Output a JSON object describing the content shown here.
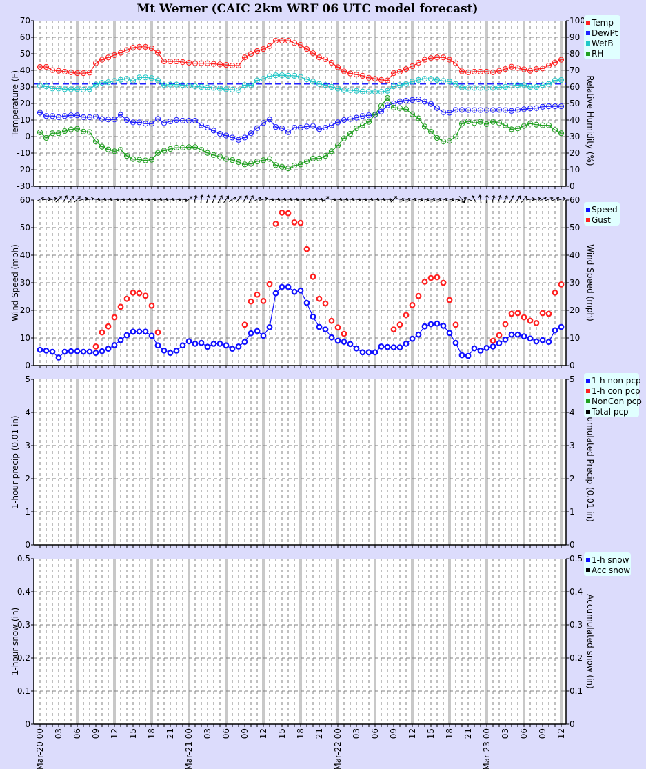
{
  "title": "Mt Werner (CAIC 2km WRF 06 UTC model forecast)",
  "x_axis": {
    "hours_start": "Mar-20 00",
    "hours_end": "Mar-23 12",
    "tick_labels": [
      "Mar-20 00",
      "03",
      "06",
      "09",
      "12",
      "15",
      "18",
      "21",
      "Mar-21 00",
      "03",
      "06",
      "09",
      "12",
      "15",
      "18",
      "21",
      "Mar-22 00",
      "03",
      "06",
      "09",
      "12",
      "15",
      "18",
      "21",
      "Mar-23 00",
      "03",
      "06",
      "09",
      "12"
    ]
  },
  "colors": {
    "background": "#dcdcfc",
    "temp": "#ff2020",
    "dewpt": "#2020ff",
    "wetb": "#20c8c8",
    "rh": "#20a020",
    "speed": "#1010ff",
    "gust": "#ff2020",
    "grid": "#808080",
    "day_line": "#c8c8c8",
    "legend_bg": "#e0ffff"
  },
  "chart_data": [
    {
      "type": "line",
      "ylabel": "Temperature (F)",
      "ylabel_right": "Relative Humidity (%)",
      "ylim": [
        -30,
        70
      ],
      "ylim_right": [
        0,
        100
      ],
      "yticks": [
        "-30",
        "-20",
        "-10",
        "0",
        "10",
        "20",
        "30",
        "40",
        "50",
        "60",
        "70"
      ],
      "yticks_right": [
        "0",
        "10",
        "20",
        "30",
        "40",
        "50",
        "60",
        "70",
        "80",
        "90",
        "100"
      ],
      "grid": true,
      "legend_position": "right-top",
      "reference_line": {
        "value": 32,
        "color": "#2020ff",
        "style": "dashed"
      },
      "x_hours": "0..84 hourly",
      "series": [
        {
          "name": "Temp",
          "axis": "left",
          "color": "#ff2020",
          "values": [
            42.1,
            42.1,
            40.1,
            39.7,
            39.2,
            38.8,
            38.3,
            38.3,
            38.6,
            44.3,
            46.4,
            47.8,
            49.2,
            50.6,
            52.3,
            53.7,
            54.2,
            54.2,
            53.3,
            50.6,
            45.4,
            45.4,
            45.4,
            45,
            44.6,
            44.3,
            44.3,
            44.3,
            43.9,
            43.6,
            43.3,
            42.9,
            42.9,
            47.8,
            49.9,
            51.7,
            52.9,
            54.7,
            57.9,
            57.9,
            57.9,
            56.5,
            55.4,
            52.9,
            50.3,
            47.8,
            46.7,
            44.6,
            41.9,
            39.4,
            38.1,
            37.4,
            36.7,
            35.5,
            34.9,
            34.2,
            33.9,
            38.3,
            39.2,
            40.8,
            42.5,
            44.6,
            46.4,
            47.4,
            47.8,
            47.8,
            46.4,
            44.3,
            39.4,
            38.8,
            39.2,
            39.2,
            39.2,
            38.8,
            39.7,
            40.8,
            42.2,
            41.4,
            40.6,
            39.7,
            40.8,
            41.1,
            42.9,
            44.7,
            46.4
          ]
        },
        {
          "name": "DewPt",
          "axis": "left",
          "color": "#2020ff",
          "values": [
            14.4,
            12.4,
            12.4,
            11.7,
            12.4,
            12.8,
            12.8,
            11.7,
            11.7,
            12,
            10.6,
            10.3,
            10.3,
            13.1,
            10,
            8.6,
            8.6,
            7.8,
            7.8,
            10.7,
            8.2,
            9.2,
            10,
            9.6,
            9.6,
            9.6,
            6.8,
            5.4,
            3.6,
            1.7,
            0.6,
            -0.6,
            -2,
            -0.6,
            2,
            5.1,
            8.2,
            10.3,
            5.8,
            5,
            2.6,
            5.4,
            5.4,
            6.1,
            6.4,
            4.5,
            5.4,
            6.8,
            8.6,
            10,
            10.6,
            11.4,
            12.4,
            12.8,
            13.1,
            15.1,
            18.9,
            20,
            21.1,
            21.7,
            22.1,
            22.5,
            21.1,
            19.7,
            17.2,
            14.7,
            14.4,
            16.1,
            16.1,
            16,
            16,
            16,
            16,
            16,
            16.1,
            16,
            15.5,
            16.1,
            16.5,
            17,
            17.2,
            18,
            18.3,
            18.3,
            18.3
          ]
        },
        {
          "name": "WetB",
          "axis": "left",
          "color": "#20c8c8",
          "values": [
            30.7,
            30.3,
            29,
            29,
            28.6,
            28.6,
            28.6,
            28.3,
            28.6,
            31.4,
            32.5,
            32.8,
            33.6,
            34.3,
            34.9,
            33.6,
            35.7,
            35.7,
            35.3,
            33.9,
            31.1,
            31.4,
            31.4,
            31.1,
            30.8,
            30.4,
            30,
            29.7,
            29.4,
            29,
            28.6,
            28.3,
            28,
            31.1,
            31,
            33.9,
            34.9,
            36.4,
            37,
            37,
            36.7,
            36.7,
            36,
            34.6,
            33.2,
            31.8,
            31.1,
            30,
            29,
            28,
            28,
            27.6,
            27.2,
            27,
            27,
            27,
            27.6,
            30.4,
            31.1,
            31.8,
            33.2,
            34.2,
            34.9,
            34.9,
            34.2,
            33.6,
            33.2,
            31.8,
            29.7,
            29.4,
            29.4,
            29.4,
            29.4,
            29.4,
            29.7,
            30,
            30.8,
            31.1,
            31.1,
            30,
            30,
            31.1,
            31.8,
            33.9,
            34.2
          ]
        },
        {
          "name": "RH",
          "axis": "right",
          "color": "#20a020",
          "values": [
            32.5,
            29.2,
            32,
            32,
            33.3,
            34.3,
            34.7,
            33,
            32.7,
            27.1,
            23.9,
            22.2,
            21.1,
            22,
            18.3,
            16.4,
            16,
            15.6,
            16,
            20.1,
            21.5,
            22.5,
            23.3,
            23.3,
            23.6,
            23.6,
            22,
            20.1,
            18.8,
            17.8,
            16.4,
            15.8,
            14.6,
            13.2,
            13.6,
            15,
            15.7,
            16.4,
            12.8,
            11.8,
            10.8,
            12.5,
            13.2,
            15,
            16.7,
            16.7,
            18.3,
            21.1,
            24.7,
            28.9,
            31.7,
            35,
            36.8,
            38.9,
            43.3,
            48.6,
            53.3,
            47.5,
            47.2,
            46.5,
            43.5,
            41,
            36.1,
            33,
            29.2,
            27.1,
            27.4,
            29.9,
            37.8,
            39.2,
            38.2,
            38.9,
            37.5,
            38.9,
            38.2,
            36.8,
            34.4,
            34.9,
            36.4,
            37.8,
            37.2,
            36.8,
            36.8,
            34,
            32
          ]
        }
      ]
    },
    {
      "type": "line",
      "ylabel": "Wind Speed (mph)",
      "ylabel_right": "Wind Speed (mph)",
      "ylim": [
        0,
        60
      ],
      "ylim_right": [
        0,
        60
      ],
      "yticks": [
        "0",
        "10",
        "20",
        "30",
        "40",
        "50",
        "60"
      ],
      "yticks_right": [
        "0",
        "10",
        "20",
        "30",
        "40",
        "50",
        "60"
      ],
      "grid": true,
      "legend_position": "right-top",
      "series": [
        {
          "name": "Speed",
          "color": "#1010ff",
          "values": [
            5.7,
            5.4,
            5,
            2.9,
            5,
            5.2,
            5.2,
            5,
            5,
            4.6,
            5.2,
            6.1,
            7.4,
            9.2,
            11,
            12.3,
            12.3,
            12.3,
            10.8,
            7.3,
            5.4,
            4.6,
            5.4,
            7.3,
            8.8,
            7.9,
            8.2,
            6.8,
            7.9,
            7.9,
            7.3,
            6.1,
            6.9,
            8.6,
            11.7,
            12.5,
            10.8,
            13.9,
            26.2,
            28.5,
            28.5,
            26.7,
            27.2,
            22.7,
            17.7,
            14,
            13.1,
            10.2,
            9,
            8.6,
            7.8,
            6.2,
            4.8,
            4.8,
            4.8,
            6.9,
            6.7,
            6.6,
            6.6,
            7.9,
            9.7,
            11.2,
            14.2,
            15,
            15.2,
            14.4,
            11.8,
            8.2,
            3.75,
            3.5,
            6.25,
            5.4,
            6.4,
            6.9,
            8.1,
            9.4,
            11.2,
            11.2,
            10.6,
            9.8,
            8.75,
            9.2,
            8.6,
            12.75,
            14
          ]
        },
        {
          "name": "Gust",
          "color": "#ff2020",
          "values": [
            null,
            null,
            null,
            null,
            null,
            null,
            null,
            null,
            null,
            6.9,
            12,
            14.2,
            17.5,
            21.3,
            24.2,
            26.4,
            26.2,
            25.3,
            21.7,
            12,
            null,
            null,
            null,
            null,
            null,
            null,
            null,
            null,
            null,
            null,
            null,
            null,
            null,
            14.8,
            23.2,
            25.7,
            23.4,
            29.5,
            51.4,
            55.4,
            55.2,
            51.9,
            51.7,
            42.2,
            32.2,
            24.2,
            22.5,
            16.2,
            13.8,
            11.5,
            null,
            null,
            null,
            null,
            null,
            null,
            null,
            13.1,
            14.8,
            18.3,
            21.9,
            25.2,
            30.4,
            31.75,
            32,
            30,
            23.75,
            14.8,
            null,
            null,
            null,
            null,
            null,
            9,
            11,
            15,
            18.75,
            19,
            17.5,
            16.25,
            15.4,
            19,
            18.75,
            26.4,
            29.4
          ]
        }
      ],
      "wind_direction_arrow_bearing_deg": [
        60,
        80,
        75,
        45,
        30,
        40,
        45,
        75,
        80,
        100,
        100,
        100,
        100,
        100,
        100,
        100,
        100,
        100,
        100,
        100,
        100,
        100,
        100,
        100,
        50,
        15,
        10,
        15,
        20,
        30,
        35,
        55,
        40,
        30,
        30,
        60,
        75,
        100,
        100,
        100,
        100,
        100,
        100,
        100,
        100,
        100,
        50,
        100,
        100,
        100,
        100,
        100,
        100,
        100,
        100,
        100,
        95,
        45,
        105,
        105,
        105,
        105,
        105,
        105,
        105,
        105,
        105,
        105,
        140,
        290,
        330,
        350,
        5,
        15,
        20,
        25,
        30,
        35,
        40,
        80,
        75,
        60,
        70,
        65,
        75
      ]
    },
    {
      "type": "bar",
      "ylabel": "1-hour precip (0.01 in)",
      "ylabel_right": "Accumulated Precip (0.01 in)",
      "ylim": [
        0,
        5
      ],
      "ylim_right": [
        0,
        5
      ],
      "yticks": [
        "0",
        "1",
        "2",
        "3",
        "4",
        "5"
      ],
      "yticks_right": [
        "0",
        "1",
        "2",
        "3",
        "4",
        "5"
      ],
      "grid": true,
      "legend_position": "right-top",
      "series": [
        {
          "name": "1-h non pcp",
          "color": "#1010ff",
          "values": []
        },
        {
          "name": "1-h con pcp",
          "color": "#ff2020",
          "values": []
        },
        {
          "name": "NonCon pcp",
          "color": "#20a020",
          "values": []
        },
        {
          "name": "Total pcp",
          "color": "#000000",
          "values": []
        }
      ]
    },
    {
      "type": "bar",
      "ylabel": "1-hour snow (in)",
      "ylabel_right": "Accumulated snow (in)",
      "ylim": [
        0,
        0.5
      ],
      "ylim_right": [
        0,
        0.5
      ],
      "yticks": [
        "0",
        "0.1",
        "0.2",
        "0.3",
        "0.4",
        "0.5"
      ],
      "yticks_right": [
        "0",
        "0.1",
        "0.2",
        "0.3",
        "0.4",
        "0.5"
      ],
      "grid": true,
      "legend_position": "right-top",
      "series": [
        {
          "name": "1-h snow",
          "color": "#1010ff",
          "values": []
        },
        {
          "name": "Acc snow",
          "color": "#000000",
          "values": []
        }
      ]
    }
  ]
}
